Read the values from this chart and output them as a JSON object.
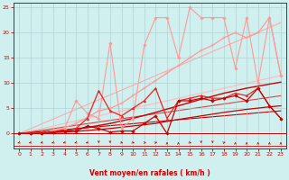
{
  "xlabel": "Vent moyen/en rafales ( km/h )",
  "xlim": [
    -0.5,
    23.5
  ],
  "ylim": [
    0,
    26
  ],
  "yticks": [
    0,
    5,
    10,
    15,
    20,
    25
  ],
  "xticks": [
    0,
    1,
    2,
    3,
    4,
    5,
    6,
    7,
    8,
    9,
    10,
    11,
    12,
    13,
    14,
    15,
    16,
    17,
    18,
    19,
    20,
    21,
    22,
    23
  ],
  "bg_color": "#cff0ee",
  "grid_color": "#aacccc",
  "series": [
    {
      "x": [
        0,
        23
      ],
      "y": [
        0,
        22.0
      ],
      "color": "#ffaaaa",
      "linewidth": 0.8,
      "linestyle": "-",
      "marker": null,
      "zorder": 1
    },
    {
      "x": [
        0,
        23
      ],
      "y": [
        0,
        11.5
      ],
      "color": "#ffbbbb",
      "linewidth": 0.8,
      "linestyle": "-",
      "marker": null,
      "zorder": 1
    },
    {
      "x": [
        0,
        23
      ],
      "y": [
        0,
        7.5
      ],
      "color": "#dd4444",
      "linewidth": 0.8,
      "linestyle": "-",
      "marker": null,
      "zorder": 1
    },
    {
      "x": [
        0,
        23
      ],
      "y": [
        0,
        4.5
      ],
      "color": "#cc0000",
      "linewidth": 0.8,
      "linestyle": "-",
      "marker": null,
      "zorder": 1
    },
    {
      "x": [
        0,
        2,
        4,
        6,
        8,
        10,
        12,
        14,
        16,
        18,
        20,
        22,
        23
      ],
      "y": [
        0,
        0.2,
        0.6,
        1.2,
        2.0,
        3.0,
        4.2,
        5.5,
        6.8,
        8.0,
        9.0,
        9.8,
        10.2
      ],
      "color": "#cc0000",
      "linewidth": 1.0,
      "linestyle": "-",
      "marker": null,
      "zorder": 2
    },
    {
      "x": [
        0,
        2,
        4,
        6,
        8,
        10,
        12,
        14,
        16,
        18,
        20,
        22,
        23
      ],
      "y": [
        0,
        0.1,
        0.3,
        0.6,
        1.0,
        1.5,
        2.0,
        2.8,
        3.5,
        4.2,
        4.8,
        5.3,
        5.5
      ],
      "color": "#cc0000",
      "linewidth": 0.9,
      "linestyle": "-",
      "marker": null,
      "zorder": 2
    },
    {
      "x": [
        0,
        1,
        2,
        3,
        4,
        5,
        6,
        7,
        8,
        9,
        10,
        11,
        12,
        13,
        14,
        15,
        16,
        17,
        18,
        19,
        20,
        21,
        22,
        23
      ],
      "y": [
        0,
        0,
        0,
        0.5,
        1.0,
        6.5,
        4.0,
        3.0,
        18.0,
        1.0,
        3.0,
        17.5,
        23.0,
        23.0,
        15.0,
        25.0,
        23.0,
        23.0,
        23.0,
        13.0,
        23.0,
        10.0,
        23.0,
        11.5
      ],
      "color": "#ff9999",
      "linewidth": 0.8,
      "linestyle": "-",
      "marker": "D",
      "markersize": 1.8,
      "zorder": 2
    },
    {
      "x": [
        0,
        1,
        2,
        3,
        4,
        5,
        6,
        7,
        8,
        9,
        10,
        11,
        12,
        13,
        14,
        15,
        16,
        17,
        18,
        19,
        20,
        21,
        22,
        23
      ],
      "y": [
        0,
        0,
        0,
        0.5,
        1.2,
        2.0,
        3.2,
        4.5,
        5.0,
        6.0,
        7.5,
        9.0,
        10.5,
        12.0,
        13.5,
        15.0,
        16.5,
        17.5,
        19.0,
        20.0,
        19.0,
        20.0,
        23.0,
        11.5
      ],
      "color": "#ff9999",
      "linewidth": 0.9,
      "linestyle": "-",
      "marker": "+",
      "markersize": 2.5,
      "zorder": 2
    },
    {
      "x": [
        0,
        1,
        2,
        3,
        4,
        5,
        6,
        7,
        8,
        9,
        10,
        11,
        12,
        13,
        14,
        15,
        16,
        17,
        18,
        19,
        20,
        21,
        22,
        23
      ],
      "y": [
        0,
        0,
        0,
        0.3,
        0.5,
        1.0,
        3.0,
        8.5,
        4.5,
        3.5,
        5.0,
        6.5,
        9.0,
        3.0,
        6.5,
        7.0,
        7.5,
        7.0,
        7.0,
        8.0,
        7.5,
        9.0,
        5.5,
        3.0
      ],
      "color": "#ee2222",
      "linewidth": 0.9,
      "linestyle": "-",
      "marker": "^",
      "markersize": 2.0,
      "zorder": 3
    },
    {
      "x": [
        0,
        1,
        2,
        3,
        4,
        5,
        6,
        7,
        8,
        9,
        10,
        11,
        12,
        13,
        14,
        15,
        16,
        17,
        18,
        19,
        20,
        21,
        22,
        23
      ],
      "y": [
        0,
        0,
        0,
        0.3,
        0.5,
        0.5,
        1.5,
        1.0,
        0.3,
        0.5,
        0.5,
        2.0,
        3.5,
        0,
        6.5,
        6.5,
        7.0,
        6.5,
        7.0,
        7.5,
        6.5,
        9.0,
        5.5,
        3.0
      ],
      "color": "#cc0000",
      "linewidth": 0.9,
      "linestyle": "-",
      "marker": "D",
      "markersize": 1.8,
      "zorder": 3
    }
  ],
  "wind_arrows_x": [
    0,
    1,
    2,
    3,
    4,
    5,
    6,
    7,
    8,
    9,
    10,
    11,
    12,
    13,
    14,
    15,
    16,
    17,
    18,
    19,
    20,
    21,
    22,
    23
  ],
  "wind_angles": [
    225,
    225,
    225,
    225,
    225,
    225,
    225,
    270,
    270,
    315,
    315,
    0,
    45,
    90,
    90,
    315,
    270,
    270,
    45,
    90,
    90,
    90,
    90,
    90
  ],
  "arrow_color": "#cc0000",
  "label_color": "#cc0000",
  "xlabel_fontsize": 5.5,
  "tick_fontsize": 4.5
}
